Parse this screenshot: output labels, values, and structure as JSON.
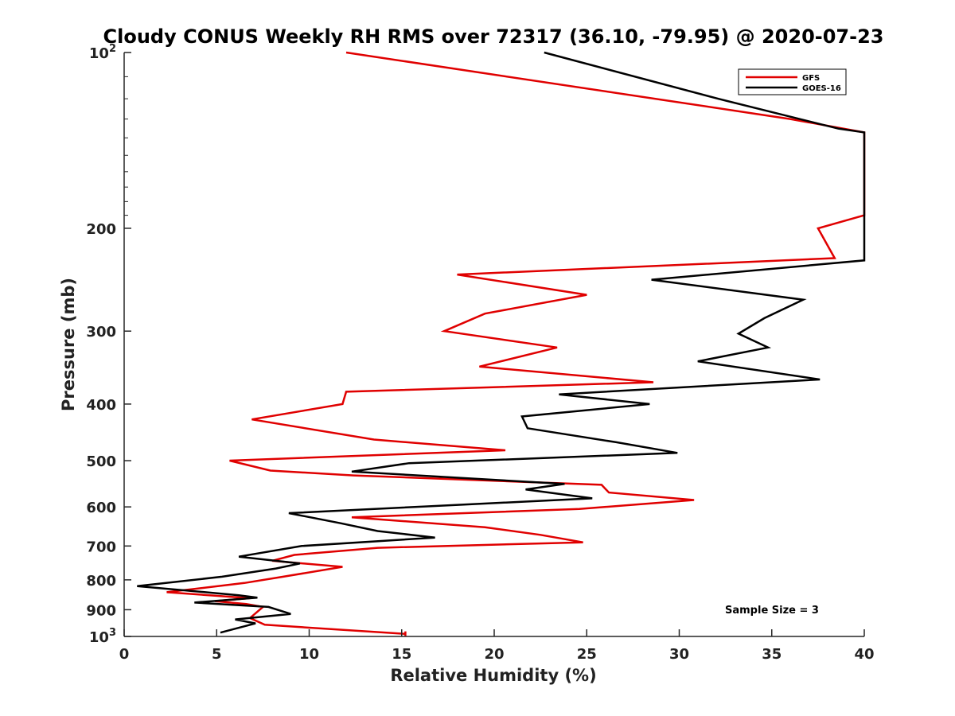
{
  "chart_data": {
    "type": "line",
    "title": "Cloudy CONUS Weekly RH RMS over 72317 (36.10, -79.95) @ 2020-07-23",
    "xlabel": "Relative Humidity (%)",
    "ylabel": "Pressure (mb)",
    "xlim": [
      0,
      40
    ],
    "ylim": [
      100,
      1000
    ],
    "y_scale": "log",
    "y_reversed": true,
    "x_ticks": [
      0,
      5,
      10,
      15,
      20,
      25,
      30,
      35,
      40
    ],
    "y_ticks": [
      {
        "value": 100,
        "base": "10",
        "exp": "2"
      },
      {
        "value": 200,
        "label": "200"
      },
      {
        "value": 300,
        "label": "300"
      },
      {
        "value": 400,
        "label": "400"
      },
      {
        "value": 500,
        "label": "500"
      },
      {
        "value": 600,
        "label": "600"
      },
      {
        "value": 700,
        "label": "700"
      },
      {
        "value": 800,
        "label": "800"
      },
      {
        "value": 900,
        "label": "900"
      },
      {
        "value": 1000,
        "base": "10",
        "exp": "3"
      }
    ],
    "grid": false,
    "legend_position": "top-right",
    "annotation": "Sample Size = 3",
    "series": [
      {
        "name": "GFS",
        "color": "#e00000",
        "points": [
          [
            12,
            100
          ],
          [
            36,
            130
          ],
          [
            40,
            137
          ],
          [
            40,
            190
          ],
          [
            37.5,
            200
          ],
          [
            38.4,
            225
          ],
          [
            18,
            240
          ],
          [
            25,
            260
          ],
          [
            19.5,
            280
          ],
          [
            17.3,
            300
          ],
          [
            23.4,
            320
          ],
          [
            19.2,
            345
          ],
          [
            28.6,
            367
          ],
          [
            12,
            381
          ],
          [
            11.8,
            400
          ],
          [
            6.9,
            425
          ],
          [
            13.5,
            460
          ],
          [
            20.6,
            480
          ],
          [
            5.7,
            500
          ],
          [
            7.9,
            520
          ],
          [
            12.4,
            530
          ],
          [
            25.8,
            550
          ],
          [
            26.2,
            567
          ],
          [
            30.8,
            584
          ],
          [
            24.6,
            605
          ],
          [
            12.3,
            625
          ],
          [
            19.5,
            650
          ],
          [
            22.5,
            670
          ],
          [
            24.8,
            690
          ],
          [
            13.7,
            705
          ],
          [
            9.2,
            725
          ],
          [
            8,
            742
          ],
          [
            11.8,
            760
          ],
          [
            8.6,
            790
          ],
          [
            6.5,
            810
          ],
          [
            2.3,
            840
          ],
          [
            6.8,
            860
          ],
          [
            4.9,
            870
          ],
          [
            6.6,
            880
          ],
          [
            7.5,
            890
          ],
          [
            6.8,
            930
          ],
          [
            7.6,
            955
          ],
          [
            15.2,
            990
          ],
          [
            15.2,
            1000
          ],
          [
            15.2,
            980
          ]
        ]
      },
      {
        "name": "GOES-16",
        "color": "#000000",
        "points": [
          [
            22.7,
            100
          ],
          [
            32.1,
            120
          ],
          [
            38.6,
            135
          ],
          [
            40,
            137
          ],
          [
            40,
            227
          ],
          [
            28.5,
            245
          ],
          [
            36.7,
            265
          ],
          [
            34.6,
            285
          ],
          [
            33.2,
            303
          ],
          [
            34.8,
            320
          ],
          [
            31,
            338
          ],
          [
            37.6,
            363
          ],
          [
            23.5,
            385
          ],
          [
            28.4,
            400
          ],
          [
            21.5,
            420
          ],
          [
            21.8,
            440
          ],
          [
            26.6,
            465
          ],
          [
            29.9,
            485
          ],
          [
            15.4,
            505
          ],
          [
            12.3,
            522
          ],
          [
            23.8,
            548
          ],
          [
            21.7,
            560
          ],
          [
            25.3,
            580
          ],
          [
            8.9,
            615
          ],
          [
            11.7,
            640
          ],
          [
            13.7,
            660
          ],
          [
            16.8,
            677
          ],
          [
            9.6,
            700
          ],
          [
            6.2,
            730
          ],
          [
            9.5,
            750
          ],
          [
            8.2,
            765
          ],
          [
            5.3,
            790
          ],
          [
            0.7,
            820
          ],
          [
            6.2,
            850
          ],
          [
            7.2,
            858
          ],
          [
            3.8,
            875
          ],
          [
            7.8,
            890
          ],
          [
            9,
            915
          ],
          [
            6,
            935
          ],
          [
            7.1,
            950
          ],
          [
            5.2,
            985
          ]
        ]
      }
    ]
  }
}
